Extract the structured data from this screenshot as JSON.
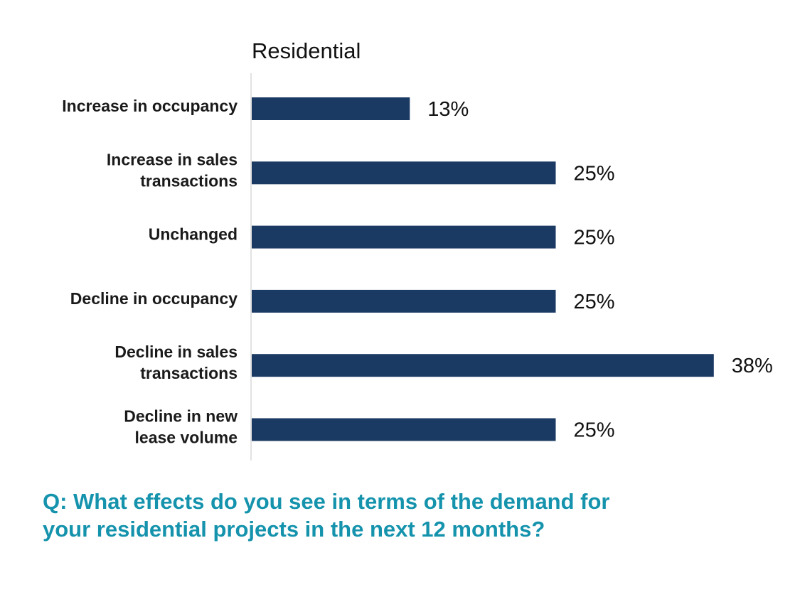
{
  "chart_data": {
    "type": "bar",
    "orientation": "horizontal",
    "title": "Residential",
    "categories": [
      [
        "Increase in occupancy"
      ],
      [
        "Increase in sales",
        "transactions"
      ],
      [
        "Unchanged"
      ],
      [
        "Decline in occupancy"
      ],
      [
        "Decline in sales",
        "transactions"
      ],
      [
        "Decline in new",
        "lease volume"
      ]
    ],
    "values": [
      13,
      25,
      25,
      25,
      38,
      25
    ],
    "value_labels": [
      "13%",
      "25%",
      "25%",
      "25%",
      "38%",
      "25%"
    ],
    "xlim": [
      0,
      40
    ],
    "grid": false,
    "bar_color": "#1b3a63"
  },
  "question": {
    "line1": "Q: What effects do you see in terms of the demand for",
    "line2": "your residential projects in the next 12 months?",
    "color": "#1593ad"
  }
}
